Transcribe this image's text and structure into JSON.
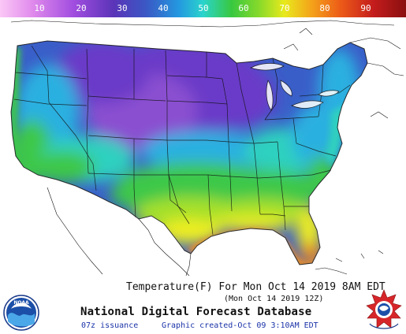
{
  "scale": {
    "labels": [
      "10",
      "20",
      "30",
      "40",
      "50",
      "60",
      "70",
      "80",
      "90"
    ],
    "colors": [
      "#f4a6f0",
      "#d46ae6",
      "#8b3fd6",
      "#4c2fa8",
      "#3b5fc8",
      "#23a8e6",
      "#2ed8c4",
      "#3cc84a",
      "#9ede2a",
      "#e6e61e",
      "#f4a21a",
      "#ee5a1a",
      "#c81e1e",
      "#9a1212"
    ]
  },
  "map": {
    "colors": {
      "violet": "#6a3bc8",
      "purple": "#8a4fd0",
      "blue": "#3a5ec8",
      "cyan": "#2ab0e0",
      "teal": "#2fd0c0",
      "green": "#3ec848",
      "yellowgreen": "#a6e02a",
      "yellow": "#eeee22",
      "orange": "#f09020",
      "red": "#e85a18"
    }
  },
  "footer": {
    "title": "Temperature(F) For Mon Oct 14 2019  8AM EDT",
    "subtitle": "(Mon Oct 14 2019 12Z)",
    "database": "National Digital Forecast Database",
    "issuance": "07z issuance",
    "created": "Graphic created-Oct 09  3:10AM EDT"
  },
  "logos": {
    "noaa": "NOAA",
    "nws": "NATIONAL WEATHER SERVICE"
  }
}
